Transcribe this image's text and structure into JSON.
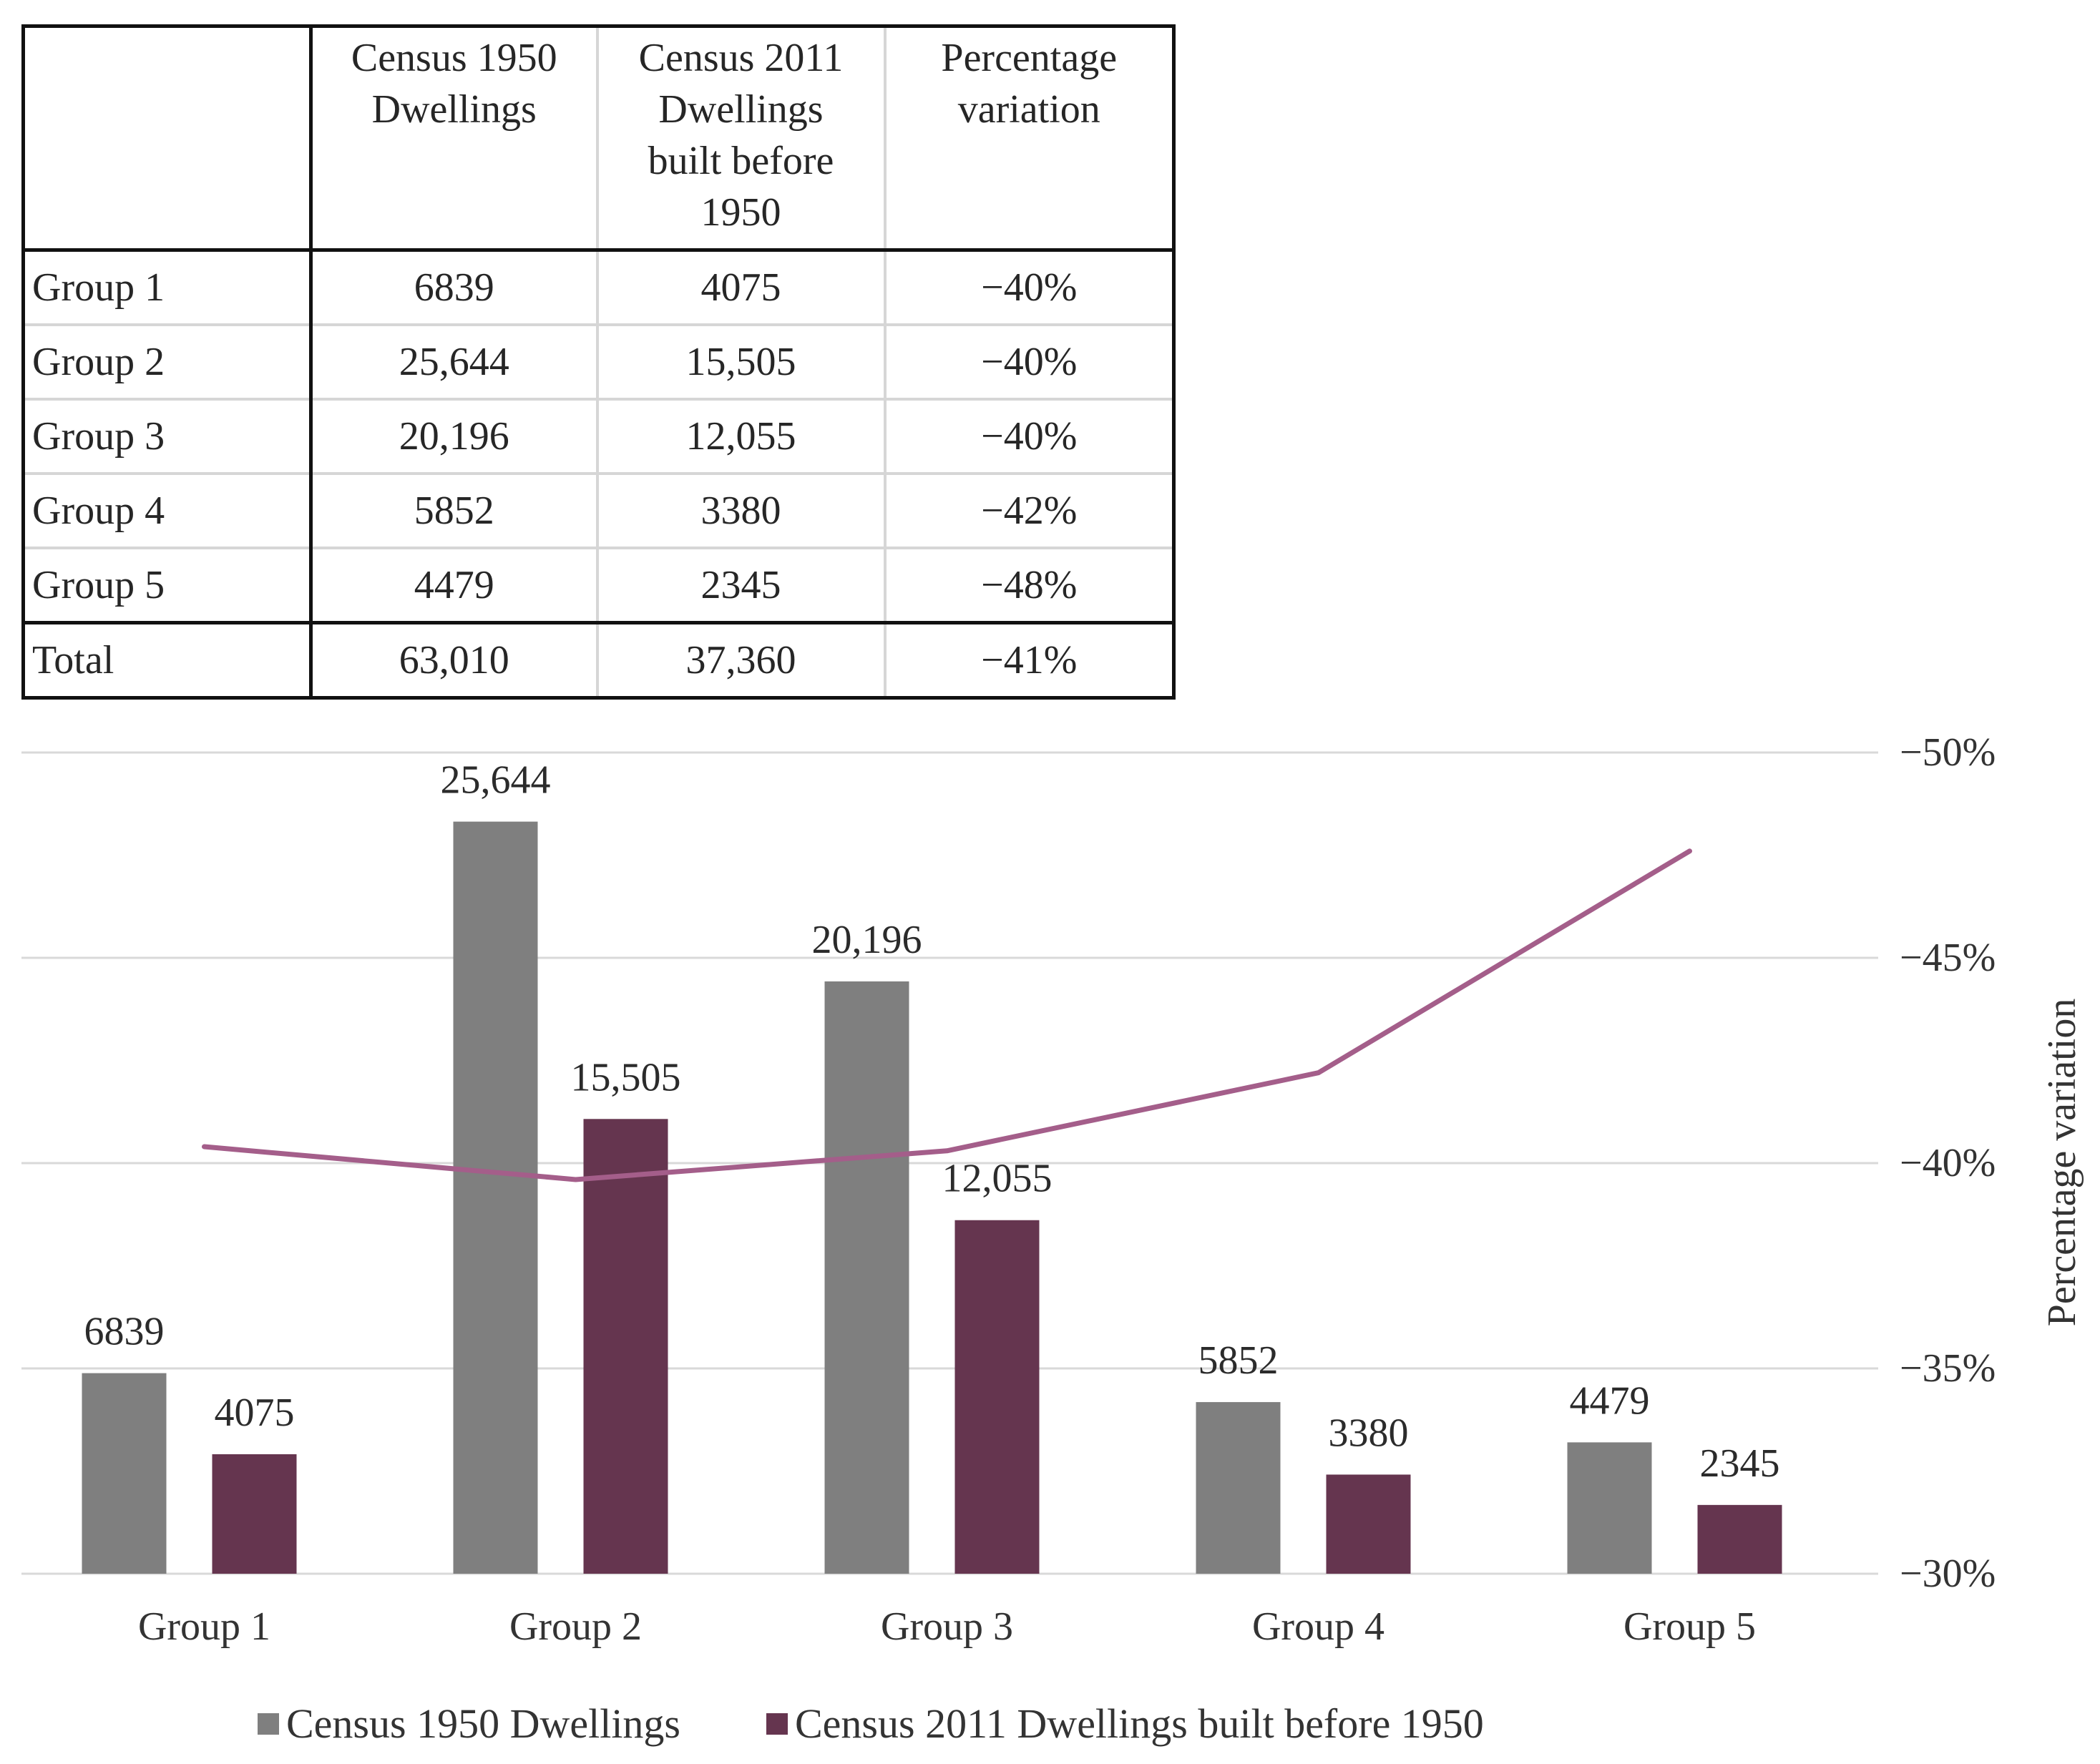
{
  "colors": {
    "series1950": "#7f7f7f",
    "series2011": "#65354f",
    "line": "#a45e8a",
    "grid": "#d9d9d9"
  },
  "table": {
    "headers": [
      "",
      "Census 1950 Dwellings",
      "Census 2011 Dwellings built before 1950",
      "Percentage variation"
    ],
    "header_lines": [
      [],
      [
        "Census 1950",
        "Dwellings"
      ],
      [
        "Census 2011",
        "Dwellings",
        "built before",
        "1950"
      ],
      [
        "Percentage",
        "variation"
      ]
    ],
    "rows": [
      [
        "Group 1",
        "6839",
        "4075",
        "−40%"
      ],
      [
        "Group 2",
        "25,644",
        "15,505",
        "−40%"
      ],
      [
        "Group 3",
        "20,196",
        "12,055",
        "−40%"
      ],
      [
        "Group 4",
        "5852",
        "3380",
        "−42%"
      ],
      [
        "Group 5",
        "4479",
        "2345",
        "−48%"
      ]
    ],
    "total": [
      "Total",
      "63,010",
      "37,360",
      "−41%"
    ]
  },
  "chart_data": {
    "type": "bar",
    "categories": [
      "Group 1",
      "Group 2",
      "Group 3",
      "Group 4",
      "Group 5"
    ],
    "series": [
      {
        "name": "Census 1950 Dwellings",
        "type": "bar",
        "values": [
          6839,
          25644,
          20196,
          5852,
          4479
        ],
        "labels": [
          "6839",
          "25,644",
          "20,196",
          "5852",
          "4479"
        ]
      },
      {
        "name": "Census 2011 Dwellings built before 1950",
        "type": "bar",
        "values": [
          4075,
          15505,
          12055,
          3380,
          2345
        ],
        "labels": [
          "4075",
          "15,505",
          "12,055",
          "3380",
          "2345"
        ]
      },
      {
        "name": "Percentage variation",
        "type": "line",
        "axis": "right",
        "values": [
          -40.4,
          -39.6,
          -40.3,
          -42.2,
          -47.6
        ]
      }
    ],
    "left_axis": {
      "min": 0,
      "max": 28000
    },
    "right_axis": {
      "label": "Percentage variation",
      "min": -30,
      "max": -50,
      "ticks": [
        -30,
        -35,
        -40,
        -45,
        -50
      ],
      "tick_labels": [
        "−30%",
        "−35%",
        "−40%",
        "−45%",
        "−50%"
      ]
    },
    "grid": true,
    "legend": {
      "position": "bottom",
      "entries": [
        "Census 1950 Dwellings",
        "Census 2011 Dwellings built before 1950"
      ]
    }
  }
}
